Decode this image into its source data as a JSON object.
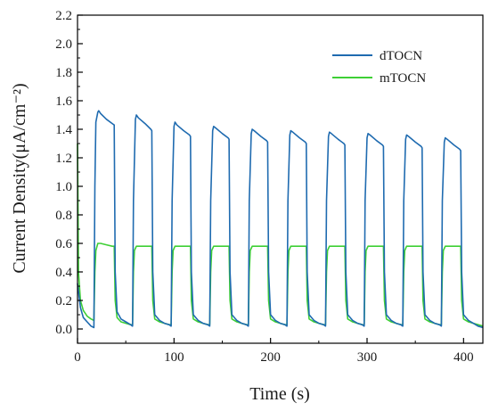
{
  "chart_data": {
    "type": "line",
    "title": "",
    "xlabel": "Time (s)",
    "ylabel": "Current Density(μA/cm⁻²)",
    "xlim": [
      0,
      420
    ],
    "ylim": [
      -0.1,
      2.2
    ],
    "x_ticks": [
      0,
      100,
      200,
      300,
      400
    ],
    "x_tick_labels": [
      "0",
      "100",
      "200",
      "300",
      "400"
    ],
    "y_ticks": [
      0.0,
      0.2,
      0.4,
      0.6,
      0.8,
      1.0,
      1.2,
      1.4,
      1.6,
      1.8,
      2.0,
      2.2
    ],
    "y_tick_labels": [
      "0.0",
      "0.2",
      "0.4",
      "0.6",
      "0.8",
      "1.0",
      "1.2",
      "1.4",
      "1.6",
      "1.8",
      "2.0",
      "2.2"
    ],
    "grid": false,
    "legend_position": "top-right",
    "series": [
      {
        "name": "dTOCN",
        "color": "#1f6bb0",
        "x": [
          0,
          3,
          6,
          10,
          14,
          17,
          18,
          19,
          21,
          22,
          24,
          30,
          36,
          38,
          39,
          41,
          45,
          50,
          55,
          57,
          58,
          60,
          61,
          63,
          70,
          76,
          77,
          78,
          80,
          85,
          90,
          95,
          97,
          98,
          100,
          101,
          103,
          110,
          116,
          117,
          118,
          120,
          125,
          130,
          135,
          137,
          138,
          140,
          141,
          143,
          150,
          156,
          157,
          158,
          160,
          165,
          170,
          175,
          177,
          178,
          180,
          181,
          183,
          190,
          196,
          197,
          198,
          200,
          205,
          210,
          215,
          217,
          218,
          220,
          221,
          223,
          230,
          236,
          237,
          238,
          240,
          245,
          250,
          255,
          257,
          258,
          260,
          261,
          263,
          270,
          276,
          277,
          278,
          280,
          285,
          290,
          295,
          297,
          298,
          300,
          301,
          303,
          310,
          316,
          317,
          318,
          320,
          325,
          330,
          335,
          337,
          338,
          340,
          341,
          343,
          350,
          356,
          357,
          358,
          360,
          365,
          370,
          375,
          377,
          378,
          380,
          381,
          383,
          390,
          396,
          397,
          398,
          400,
          405,
          410,
          415,
          420
        ],
        "y": [
          0.32,
          0.15,
          0.08,
          0.05,
          0.02,
          0.01,
          1.0,
          1.45,
          1.52,
          1.53,
          1.51,
          1.47,
          1.44,
          1.43,
          0.4,
          0.12,
          0.07,
          0.05,
          0.03,
          0.02,
          0.9,
          1.47,
          1.5,
          1.48,
          1.44,
          1.4,
          1.39,
          0.4,
          0.1,
          0.06,
          0.04,
          0.03,
          0.02,
          0.9,
          1.42,
          1.45,
          1.43,
          1.39,
          1.36,
          1.35,
          0.4,
          0.1,
          0.06,
          0.04,
          0.03,
          0.02,
          0.9,
          1.39,
          1.42,
          1.41,
          1.37,
          1.34,
          1.33,
          0.4,
          0.1,
          0.06,
          0.04,
          0.03,
          0.02,
          0.9,
          1.37,
          1.4,
          1.39,
          1.35,
          1.32,
          1.31,
          0.4,
          0.1,
          0.06,
          0.04,
          0.03,
          0.02,
          0.9,
          1.36,
          1.39,
          1.38,
          1.34,
          1.31,
          1.3,
          0.4,
          0.1,
          0.06,
          0.04,
          0.03,
          0.02,
          0.9,
          1.35,
          1.38,
          1.37,
          1.33,
          1.3,
          1.29,
          0.4,
          0.1,
          0.06,
          0.04,
          0.03,
          0.02,
          0.9,
          1.34,
          1.37,
          1.36,
          1.32,
          1.29,
          1.28,
          0.4,
          0.1,
          0.06,
          0.04,
          0.03,
          0.02,
          0.9,
          1.33,
          1.36,
          1.35,
          1.31,
          1.28,
          1.27,
          0.4,
          0.1,
          0.06,
          0.04,
          0.03,
          0.02,
          0.9,
          1.31,
          1.34,
          1.33,
          1.29,
          1.26,
          1.25,
          0.4,
          0.1,
          0.06,
          0.04,
          0.02,
          0.01
        ]
      },
      {
        "name": "mTOCN",
        "color": "#3ecf35",
        "x": [
          0,
          1,
          3,
          6,
          10,
          14,
          17,
          18,
          19,
          21,
          24,
          30,
          36,
          38,
          39,
          41,
          45,
          50,
          55,
          57,
          58,
          59,
          61,
          64,
          70,
          76,
          77,
          78,
          80,
          85,
          90,
          95,
          97,
          98,
          99,
          101,
          104,
          110,
          116,
          117,
          118,
          120,
          125,
          130,
          135,
          137,
          138,
          139,
          141,
          144,
          150,
          156,
          157,
          158,
          160,
          165,
          170,
          175,
          177,
          178,
          179,
          181,
          184,
          190,
          196,
          197,
          198,
          200,
          205,
          210,
          215,
          217,
          218,
          219,
          221,
          224,
          230,
          236,
          237,
          238,
          240,
          245,
          250,
          255,
          257,
          258,
          259,
          261,
          264,
          270,
          276,
          277,
          278,
          280,
          285,
          290,
          295,
          297,
          298,
          299,
          301,
          304,
          310,
          316,
          317,
          318,
          320,
          325,
          330,
          335,
          337,
          338,
          339,
          341,
          344,
          350,
          356,
          357,
          358,
          360,
          365,
          370,
          375,
          377,
          378,
          379,
          381,
          384,
          390,
          396,
          397,
          398,
          400,
          405,
          410,
          415,
          420
        ],
        "y": [
          1.3,
          0.4,
          0.2,
          0.13,
          0.09,
          0.07,
          0.06,
          0.4,
          0.55,
          0.6,
          0.6,
          0.59,
          0.58,
          0.58,
          0.2,
          0.08,
          0.05,
          0.04,
          0.03,
          0.03,
          0.4,
          0.55,
          0.58,
          0.58,
          0.58,
          0.58,
          0.58,
          0.2,
          0.07,
          0.05,
          0.04,
          0.03,
          0.03,
          0.4,
          0.55,
          0.58,
          0.58,
          0.58,
          0.58,
          0.58,
          0.2,
          0.07,
          0.05,
          0.04,
          0.03,
          0.03,
          0.4,
          0.55,
          0.58,
          0.58,
          0.58,
          0.58,
          0.58,
          0.2,
          0.07,
          0.05,
          0.04,
          0.03,
          0.03,
          0.4,
          0.55,
          0.58,
          0.58,
          0.58,
          0.58,
          0.58,
          0.2,
          0.07,
          0.05,
          0.04,
          0.03,
          0.03,
          0.4,
          0.55,
          0.58,
          0.58,
          0.58,
          0.58,
          0.58,
          0.2,
          0.07,
          0.05,
          0.04,
          0.03,
          0.03,
          0.4,
          0.55,
          0.58,
          0.58,
          0.58,
          0.58,
          0.58,
          0.2,
          0.07,
          0.05,
          0.04,
          0.03,
          0.03,
          0.4,
          0.55,
          0.58,
          0.58,
          0.58,
          0.58,
          0.58,
          0.2,
          0.07,
          0.05,
          0.04,
          0.03,
          0.03,
          0.4,
          0.55,
          0.58,
          0.58,
          0.58,
          0.58,
          0.58,
          0.2,
          0.07,
          0.05,
          0.04,
          0.03,
          0.03,
          0.4,
          0.55,
          0.58,
          0.58,
          0.58,
          0.58,
          0.58,
          0.2,
          0.07,
          0.05,
          0.04,
          0.03,
          0.02
        ]
      }
    ]
  }
}
